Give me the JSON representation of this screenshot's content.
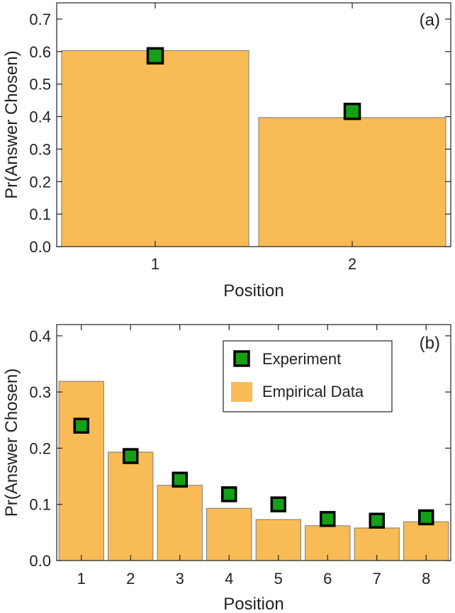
{
  "chart_data": [
    {
      "type": "bar",
      "panel_label": "(a)",
      "categories": [
        "1",
        "2"
      ],
      "series": [
        {
          "name": "Empirical Data",
          "kind": "bar",
          "values": [
            0.603,
            0.397
          ]
        },
        {
          "name": "Experiment",
          "kind": "marker",
          "values": [
            0.587,
            0.416
          ]
        }
      ],
      "xlabel": "Position",
      "ylabel": "Pr(Answer Chosen)",
      "ylim": [
        0,
        0.75
      ],
      "yticks": [
        "0.0",
        "0.1",
        "0.2",
        "0.3",
        "0.4",
        "0.5",
        "0.6",
        "0.7"
      ],
      "legend": false
    },
    {
      "type": "bar",
      "panel_label": "(b)",
      "categories": [
        "1",
        "2",
        "3",
        "4",
        "5",
        "6",
        "7",
        "8"
      ],
      "series": [
        {
          "name": "Empirical Data",
          "kind": "bar",
          "values": [
            0.319,
            0.193,
            0.134,
            0.093,
            0.073,
            0.062,
            0.058,
            0.069
          ]
        },
        {
          "name": "Experiment",
          "kind": "marker",
          "values": [
            0.24,
            0.186,
            0.144,
            0.118,
            0.1,
            0.074,
            0.071,
            0.077
          ]
        }
      ],
      "xlabel": "Position",
      "ylabel": "Pr(Answer Chosen)",
      "ylim": [
        0,
        0.42
      ],
      "yticks": [
        "0.0",
        "0.1",
        "0.2",
        "0.3",
        "0.4"
      ],
      "legend": true,
      "legend_position": "top-right",
      "legend_entries": [
        "Experiment",
        "Empirical Data"
      ]
    }
  ],
  "colors": {
    "bar_fill": "#f9bb55",
    "bar_stroke": "#7a7a7a",
    "marker_fill": "#14a014",
    "marker_stroke": "#000000"
  }
}
